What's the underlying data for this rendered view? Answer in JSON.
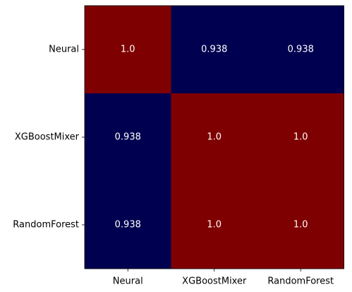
{
  "chart_data": {
    "type": "heatmap",
    "title": "",
    "xlabel": "",
    "ylabel": "",
    "x_categories": [
      "Neural",
      "XGBoostMixer",
      "RandomForest"
    ],
    "y_categories": [
      "Neural",
      "XGBoostMixer",
      "RandomForest"
    ],
    "values": [
      [
        1.0,
        0.938,
        0.938
      ],
      [
        0.938,
        1.0,
        1.0
      ],
      [
        0.938,
        1.0,
        1.0
      ]
    ],
    "value_labels": [
      [
        "1.0",
        "0.938",
        "0.938"
      ],
      [
        "0.938",
        "1.0",
        "1.0"
      ],
      [
        "0.938",
        "1.0",
        "1.0"
      ]
    ],
    "vmin": 0.938,
    "vmax": 1.0,
    "colormap": {
      "low": "#000050",
      "high": "#7f0000"
    },
    "annotation_color": "#ffffff",
    "grid": false,
    "legend": "none"
  }
}
